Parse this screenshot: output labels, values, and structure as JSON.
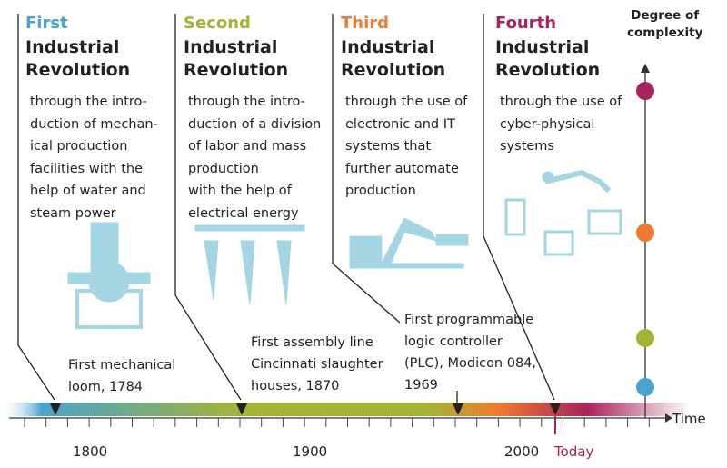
{
  "revolutions": [
    {
      "ordinal": "First",
      "title": "Industrial Revolution",
      "description": [
        "through the intro-",
        "duction of mechan-",
        "ical production",
        "facilities with the",
        "help of water and",
        "steam power"
      ],
      "milestone": [
        "First mechanical",
        "loom, 1784"
      ]
    },
    {
      "ordinal": "Second",
      "title": "Industrial Revolution",
      "description": [
        "through the intro-",
        "duction of a division",
        "of labor and mass",
        "production",
        "with the help of",
        "electrical energy"
      ],
      "milestone": [
        "First assembly line",
        "Cincinnati slaughter",
        "houses, 1870"
      ]
    },
    {
      "ordinal": "Third",
      "title": "Industrial Revolution",
      "description": [
        "through the use of",
        "electronic and IT",
        "systems that",
        "further automate",
        "production"
      ],
      "milestone": [
        "First programmable",
        "logic controller",
        "(PLC), Modicon 084,",
        "1969"
      ]
    },
    {
      "ordinal": "Fourth",
      "title": "Industrial Revolution",
      "description": [
        "through the use of",
        "cyber-physical",
        "systems"
      ]
    }
  ],
  "complexity_label": [
    "Degree of",
    "complexity"
  ],
  "time_label": "Time",
  "year_labels": [
    "1800",
    "1900",
    "2000"
  ],
  "today_label": "Today"
}
